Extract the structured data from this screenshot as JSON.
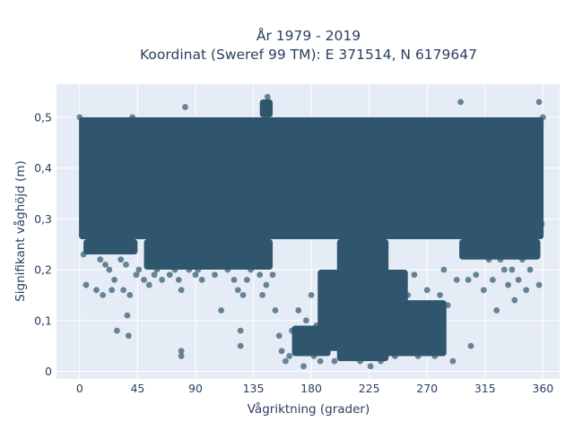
{
  "chart_data": {
    "type": "scatter",
    "title": "År 1979 - 2019",
    "subtitle": "Koordinat (Sweref 99 TM): E 371514, N 6179647",
    "xlabel": "Vågriktning (grader)",
    "ylabel": "Signifikant våghöjd (m)",
    "xlim": [
      -18,
      373
    ],
    "ylim": [
      -0.015,
      0.565
    ],
    "x_ticks": [
      0,
      45,
      90,
      135,
      180,
      225,
      270,
      315,
      360
    ],
    "x_tick_labels": [
      "0",
      "45",
      "90",
      "135",
      "180",
      "225",
      "270",
      "315",
      "360"
    ],
    "y_ticks": [
      0,
      0.1,
      0.2,
      0.3,
      0.4,
      0.5
    ],
    "y_tick_labels": [
      "0",
      "0,1",
      "0,2",
      "0,3",
      "0,4",
      "0,5"
    ],
    "grid": true,
    "legend": "none",
    "colors": {
      "marker": "#2f566d",
      "plot_bg": "#e5ecf6",
      "grid": "#ffffff",
      "text": "#2a3f5f"
    },
    "series": [
      {
        "values": [
          [
            0,
            0.5
          ],
          [
            2,
            0.29
          ],
          [
            3,
            0.23
          ],
          [
            5,
            0.17
          ],
          [
            8,
            0.26
          ],
          [
            12,
            0.24
          ],
          [
            13,
            0.16
          ],
          [
            16,
            0.22
          ],
          [
            18,
            0.15
          ],
          [
            20,
            0.21
          ],
          [
            23,
            0.2
          ],
          [
            25,
            0.16
          ],
          [
            27,
            0.18
          ],
          [
            29,
            0.08
          ],
          [
            32,
            0.22
          ],
          [
            34,
            0.16
          ],
          [
            36,
            0.21
          ],
          [
            37,
            0.11
          ],
          [
            38,
            0.07
          ],
          [
            39,
            0.15
          ],
          [
            41,
            0.5
          ],
          [
            44,
            0.19
          ],
          [
            46,
            0.2
          ],
          [
            50,
            0.18
          ],
          [
            54,
            0.17
          ],
          [
            58,
            0.19
          ],
          [
            60,
            0.2
          ],
          [
            64,
            0.18
          ],
          [
            67,
            0.22
          ],
          [
            70,
            0.19
          ],
          [
            74,
            0.2
          ],
          [
            77,
            0.18
          ],
          [
            79,
            0.16
          ],
          [
            79,
            0.04
          ],
          [
            79,
            0.03
          ],
          [
            82,
            0.52
          ],
          [
            85,
            0.2
          ],
          [
            90,
            0.19
          ],
          [
            92,
            0.2
          ],
          [
            95,
            0.18
          ],
          [
            100,
            0.21
          ],
          [
            105,
            0.19
          ],
          [
            110,
            0.12
          ],
          [
            115,
            0.2
          ],
          [
            120,
            0.18
          ],
          [
            123,
            0.16
          ],
          [
            125,
            0.08
          ],
          [
            125,
            0.05
          ],
          [
            127,
            0.15
          ],
          [
            130,
            0.18
          ],
          [
            133,
            0.2
          ],
          [
            136,
            0.49
          ],
          [
            138,
            0.21
          ],
          [
            140,
            0.19
          ],
          [
            142,
            0.15
          ],
          [
            145,
            0.17
          ],
          [
            146,
            0.54
          ],
          [
            147,
            0.53
          ],
          [
            150,
            0.19
          ],
          [
            152,
            0.12
          ],
          [
            155,
            0.07
          ],
          [
            157,
            0.04
          ],
          [
            160,
            0.02
          ],
          [
            163,
            0.03
          ],
          [
            165,
            0.08
          ],
          [
            168,
            0.05
          ],
          [
            170,
            0.12
          ],
          [
            172,
            0.04
          ],
          [
            174,
            0.01
          ],
          [
            176,
            0.1
          ],
          [
            178,
            0.06
          ],
          [
            180,
            0.15
          ],
          [
            182,
            0.03
          ],
          [
            184,
            0.09
          ],
          [
            187,
            0.02
          ],
          [
            190,
            0.13
          ],
          [
            193,
            0.05
          ],
          [
            195,
            0.1
          ],
          [
            198,
            0.02
          ],
          [
            200,
            0.14
          ],
          [
            203,
            0.07
          ],
          [
            205,
            0.16
          ],
          [
            208,
            0.03
          ],
          [
            210,
            0.12
          ],
          [
            213,
            0.06
          ],
          [
            216,
            0.18
          ],
          [
            218,
            0.02
          ],
          [
            220,
            0.1
          ],
          [
            223,
            0.04
          ],
          [
            225,
            0.14
          ],
          [
            226,
            0.01
          ],
          [
            228,
            0.07
          ],
          [
            231,
            0.16
          ],
          [
            234,
            0.02
          ],
          [
            236,
            0.11
          ],
          [
            239,
            0.05
          ],
          [
            242,
            0.17
          ],
          [
            245,
            0.03
          ],
          [
            248,
            0.09
          ],
          [
            250,
            0.13
          ],
          [
            253,
            0.04
          ],
          [
            255,
            0.15
          ],
          [
            258,
            0.08
          ],
          [
            260,
            0.19
          ],
          [
            263,
            0.03
          ],
          [
            265,
            0.11
          ],
          [
            268,
            0.06
          ],
          [
            270,
            0.16
          ],
          [
            273,
            0.05
          ],
          [
            276,
            0.03
          ],
          [
            280,
            0.15
          ],
          [
            283,
            0.2
          ],
          [
            286,
            0.13
          ],
          [
            290,
            0.02
          ],
          [
            293,
            0.18
          ],
          [
            296,
            0.53
          ],
          [
            300,
            0.23
          ],
          [
            302,
            0.18
          ],
          [
            304,
            0.05
          ],
          [
            308,
            0.19
          ],
          [
            310,
            0.24
          ],
          [
            314,
            0.16
          ],
          [
            318,
            0.22
          ],
          [
            321,
            0.18
          ],
          [
            324,
            0.12
          ],
          [
            327,
            0.22
          ],
          [
            330,
            0.2
          ],
          [
            333,
            0.17
          ],
          [
            336,
            0.2
          ],
          [
            338,
            0.14
          ],
          [
            341,
            0.18
          ],
          [
            344,
            0.22
          ],
          [
            347,
            0.16
          ],
          [
            350,
            0.2
          ],
          [
            354,
            0.24
          ],
          [
            357,
            0.53
          ],
          [
            357,
            0.17
          ],
          [
            359,
            0.29
          ],
          [
            360,
            0.5
          ]
        ]
      }
    ]
  }
}
